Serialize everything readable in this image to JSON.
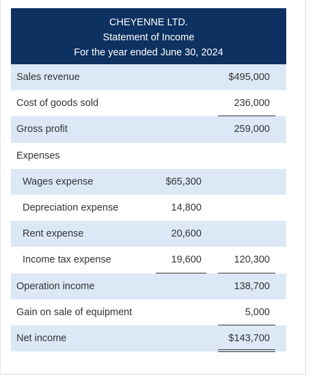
{
  "header": {
    "company": "CHEYENNE LTD.",
    "statement": "Statement of Income",
    "period": "For the year ended June 30, 2024"
  },
  "rows": [
    {
      "label": "Sales revenue",
      "col1": "",
      "col2": "$495,000"
    },
    {
      "label": "Cost of goods sold",
      "col1": "",
      "col2": "236,000"
    },
    {
      "label": "Gross profit",
      "col1": "",
      "col2": "259,000"
    },
    {
      "label": "Expenses",
      "col1": "",
      "col2": ""
    },
    {
      "label": "Wages expense",
      "col1": "$65,300",
      "col2": ""
    },
    {
      "label": "Depreciation expense",
      "col1": "14,800",
      "col2": ""
    },
    {
      "label": "Rent expense",
      "col1": "20,600",
      "col2": ""
    },
    {
      "label": "Income tax expense",
      "col1": "19,600",
      "col2": "120,300"
    },
    {
      "label": "Operation income",
      "col1": "",
      "col2": "138,700"
    },
    {
      "label": "Gain on sale of equipment",
      "col1": "",
      "col2": "5,000"
    },
    {
      "label": "Net income",
      "col1": "",
      "col2": "$143,700"
    }
  ]
}
